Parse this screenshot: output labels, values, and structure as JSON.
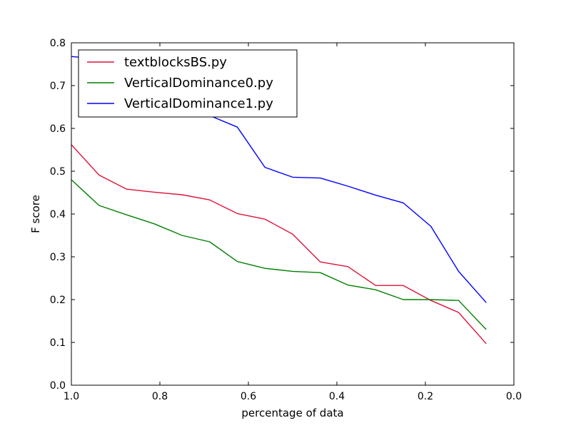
{
  "chart_data": {
    "type": "line",
    "title": "",
    "xlabel": "percentage of data",
    "ylabel": "F score",
    "xlim": [
      1.0,
      0.0
    ],
    "ylim": [
      0.0,
      0.8
    ],
    "x_ticks": [
      1.0,
      0.8,
      0.6,
      0.4,
      0.2,
      0.0
    ],
    "x_tick_labels": [
      "1.0",
      "0.8",
      "0.6",
      "0.4",
      "0.2",
      "0.0"
    ],
    "y_ticks": [
      0.0,
      0.1,
      0.2,
      0.3,
      0.4,
      0.5,
      0.6,
      0.7,
      0.8
    ],
    "y_tick_labels": [
      "0.0",
      "0.1",
      "0.2",
      "0.3",
      "0.4",
      "0.5",
      "0.6",
      "0.7",
      "0.8"
    ],
    "grid": false,
    "legend_position": "top-left",
    "x": [
      1.0,
      0.9375,
      0.875,
      0.8125,
      0.75,
      0.6875,
      0.625,
      0.5625,
      0.5,
      0.4375,
      0.375,
      0.3125,
      0.25,
      0.1875,
      0.125,
      0.0625
    ],
    "series": [
      {
        "name": "textblocksBS.py",
        "color": "#dc143c",
        "values": [
          0.562,
          0.491,
          0.458,
          0.451,
          0.445,
          0.433,
          0.401,
          0.388,
          0.353,
          0.288,
          0.277,
          0.233,
          0.233,
          0.198,
          0.17,
          0.097
        ]
      },
      {
        "name": "VerticalDominance0.py",
        "color": "#008000",
        "values": [
          0.48,
          0.42,
          0.398,
          0.377,
          0.35,
          0.335,
          0.289,
          0.273,
          0.266,
          0.263,
          0.234,
          0.223,
          0.2,
          0.2,
          0.198,
          0.13
        ]
      },
      {
        "name": "VerticalDominance1.py",
        "color": "#0000ff",
        "values": [
          0.768,
          0.762,
          0.7,
          0.69,
          0.66,
          0.63,
          0.603,
          0.509,
          0.486,
          0.484,
          0.465,
          0.444,
          0.426,
          0.371,
          0.266,
          0.193
        ]
      }
    ]
  }
}
